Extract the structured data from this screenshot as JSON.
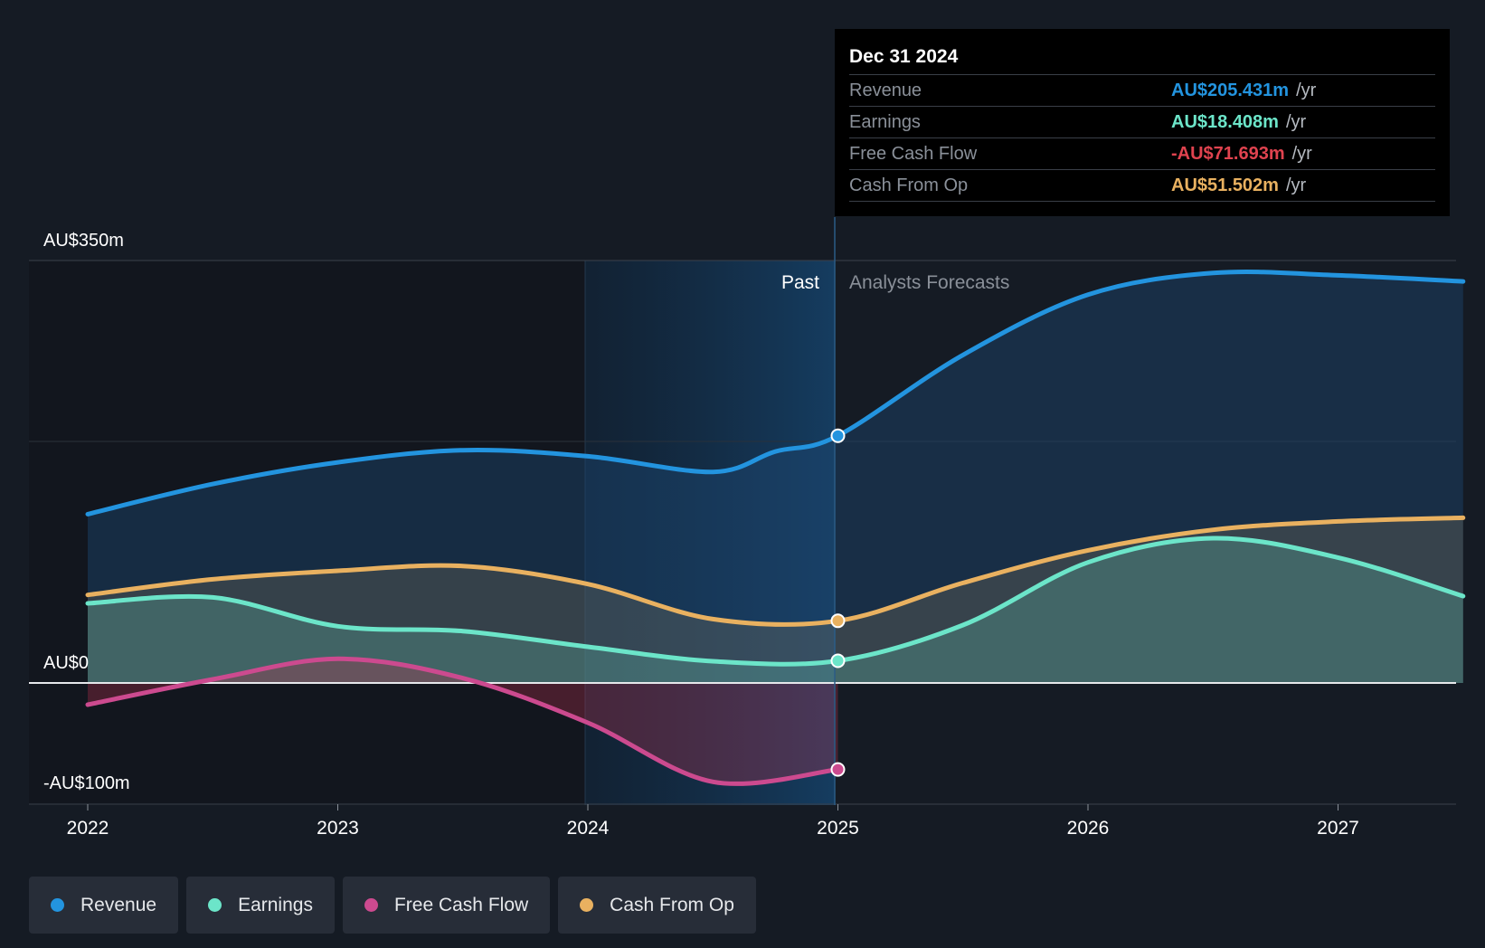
{
  "chart_data": {
    "type": "line",
    "x_labels": [
      "2022",
      "2023",
      "2024",
      "2025",
      "2026",
      "2027"
    ],
    "y_labels": [
      "AU$350m",
      "AU$0",
      "-AU$100m"
    ],
    "ylim": [
      -100,
      350
    ],
    "regions": {
      "past_label": "Past",
      "forecast_label": "Analysts Forecasts",
      "divider_x": 2025.0
    },
    "series": [
      {
        "name": "Revenue",
        "color": "#2394df",
        "points": [
          [
            2022.0,
            140
          ],
          [
            2022.5,
            165
          ],
          [
            2023.0,
            183
          ],
          [
            2023.5,
            193
          ],
          [
            2024.0,
            188
          ],
          [
            2024.5,
            175
          ],
          [
            2024.75,
            192
          ],
          [
            2025.0,
            205
          ],
          [
            2025.5,
            272
          ],
          [
            2026.0,
            322
          ],
          [
            2026.5,
            340
          ],
          [
            2027.0,
            338
          ],
          [
            2027.5,
            333
          ]
        ]
      },
      {
        "name": "Earnings",
        "color": "#6ce5c9",
        "points": [
          [
            2022.0,
            66
          ],
          [
            2022.5,
            71
          ],
          [
            2023.0,
            47
          ],
          [
            2023.5,
            43
          ],
          [
            2024.0,
            30
          ],
          [
            2024.5,
            18
          ],
          [
            2025.0,
            18.4
          ],
          [
            2025.5,
            48
          ],
          [
            2026.0,
            100
          ],
          [
            2026.5,
            120
          ],
          [
            2027.0,
            104
          ],
          [
            2027.5,
            72
          ]
        ]
      },
      {
        "name": "Free Cash Flow",
        "color": "#cc4a8f",
        "points": [
          [
            2022.0,
            -18
          ],
          [
            2022.5,
            3
          ],
          [
            2023.0,
            20
          ],
          [
            2023.5,
            4
          ],
          [
            2024.0,
            -33
          ],
          [
            2024.5,
            -82
          ],
          [
            2025.0,
            -71.693
          ]
        ]
      },
      {
        "name": "Cash From Op",
        "color": "#e9b160",
        "points": [
          [
            2022.0,
            73
          ],
          [
            2022.5,
            86
          ],
          [
            2023.0,
            93
          ],
          [
            2023.5,
            97
          ],
          [
            2024.0,
            82
          ],
          [
            2024.5,
            53
          ],
          [
            2025.0,
            51.502
          ],
          [
            2025.5,
            83
          ],
          [
            2026.0,
            110
          ],
          [
            2026.5,
            127
          ],
          [
            2027.0,
            134
          ],
          [
            2027.5,
            137
          ]
        ]
      }
    ]
  },
  "tooltip": {
    "date": "Dec 31 2024",
    "unit": "/yr",
    "rows": [
      {
        "label": "Revenue",
        "value": "AU$205.431m",
        "color": "#2394df"
      },
      {
        "label": "Earnings",
        "value": "AU$18.408m",
        "color": "#6ce5c9"
      },
      {
        "label": "Free Cash Flow",
        "value": "-AU$71.693m",
        "color": "#e0434f"
      },
      {
        "label": "Cash From Op",
        "value": "AU$51.502m",
        "color": "#e9b160"
      }
    ]
  },
  "legend": [
    {
      "label": "Revenue",
      "color": "#2394df"
    },
    {
      "label": "Earnings",
      "color": "#6ce5c9"
    },
    {
      "label": "Free Cash Flow",
      "color": "#cc4a8f"
    },
    {
      "label": "Cash From Op",
      "color": "#e9b160"
    }
  ]
}
